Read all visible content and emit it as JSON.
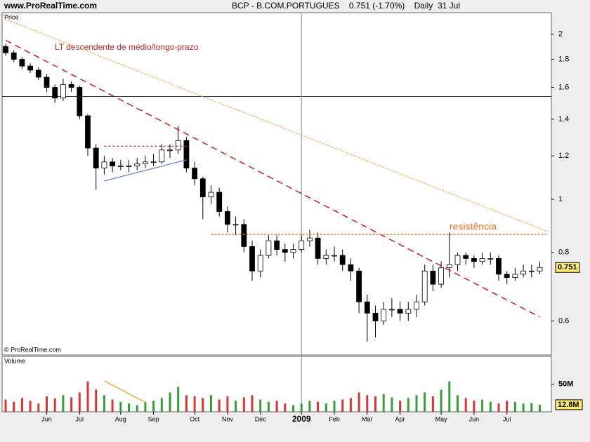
{
  "chart_data": {
    "type": "candlestick",
    "site": "www.ProRealTime.com",
    "title": "BCP - B.COM.PORTUGUES    0.751 (-1.70%)    Daily  31 Jul",
    "price_label": "Price",
    "copyright": "© ProRealTime.com",
    "log_scale": true,
    "categories": [
      null,
      null,
      null,
      null,
      null,
      "Jun",
      null,
      null,
      null,
      "Jul",
      null,
      null,
      null,
      null,
      "Aug",
      null,
      null,
      null,
      "Sep",
      null,
      null,
      null,
      null,
      "Oct",
      null,
      null,
      null,
      "Nov",
      null,
      null,
      null,
      "Dec",
      null,
      null,
      null,
      null,
      "2009",
      null,
      null,
      null,
      "Feb",
      null,
      null,
      null,
      "Mar",
      null,
      null,
      null,
      "Apr",
      null,
      null,
      null,
      null,
      "May",
      null,
      null,
      null,
      "Jun",
      null,
      null,
      null,
      "Jul",
      null,
      null,
      null,
      null
    ],
    "open": [
      1.9,
      1.85,
      1.8,
      1.75,
      1.72,
      1.67,
      1.6,
      1.53,
      1.62,
      1.6,
      1.42,
      1.24,
      1.14,
      1.17,
      1.15,
      1.15,
      1.15,
      1.16,
      1.17,
      1.17,
      1.23,
      1.23,
      1.28,
      1.14,
      1.09,
      1.01,
      1.03,
      0.95,
      0.9,
      0.9,
      0.82,
      0.74,
      0.79,
      0.84,
      0.81,
      0.8,
      0.81,
      0.84,
      0.85,
      0.78,
      0.79,
      0.79,
      0.76,
      0.74,
      0.65,
      0.62,
      0.6,
      0.63,
      0.63,
      0.62,
      0.63,
      0.65,
      0.74,
      0.7,
      0.75,
      0.76,
      0.79,
      0.78,
      0.77,
      0.78,
      0.78,
      0.73,
      0.72,
      0.73,
      0.74,
      0.74
    ],
    "high": [
      1.92,
      1.87,
      1.82,
      1.77,
      1.74,
      1.69,
      1.62,
      1.66,
      1.64,
      1.61,
      1.43,
      1.26,
      1.2,
      1.19,
      1.18,
      1.18,
      1.19,
      1.2,
      1.21,
      1.26,
      1.26,
      1.36,
      1.3,
      1.17,
      1.1,
      1.06,
      1.05,
      0.97,
      0.93,
      0.92,
      0.84,
      0.81,
      0.86,
      0.86,
      0.83,
      0.83,
      0.86,
      0.88,
      0.87,
      0.81,
      0.82,
      0.81,
      0.78,
      0.75,
      0.67,
      0.64,
      0.65,
      0.66,
      0.65,
      0.65,
      0.67,
      0.76,
      0.76,
      0.77,
      0.87,
      0.8,
      0.8,
      0.79,
      0.8,
      0.8,
      0.79,
      0.74,
      0.75,
      0.76,
      0.76,
      0.77
    ],
    "low": [
      1.83,
      1.78,
      1.73,
      1.7,
      1.65,
      1.57,
      1.5,
      1.51,
      1.57,
      1.4,
      1.2,
      1.04,
      1.11,
      1.12,
      1.13,
      1.12,
      1.13,
      1.14,
      1.15,
      1.16,
      1.19,
      1.21,
      1.12,
      1.06,
      0.92,
      0.98,
      0.93,
      0.87,
      0.86,
      0.8,
      0.71,
      0.72,
      0.78,
      0.79,
      0.77,
      0.78,
      0.8,
      0.82,
      0.76,
      0.76,
      0.77,
      0.74,
      0.71,
      0.62,
      0.55,
      0.56,
      0.59,
      0.61,
      0.6,
      0.6,
      0.61,
      0.64,
      0.68,
      0.69,
      0.72,
      0.74,
      0.76,
      0.75,
      0.76,
      0.76,
      0.71,
      0.7,
      0.71,
      0.72,
      0.72,
      0.73
    ],
    "close": [
      1.85,
      1.8,
      1.75,
      1.72,
      1.67,
      1.6,
      1.53,
      1.62,
      1.6,
      1.42,
      1.24,
      1.14,
      1.17,
      1.15,
      1.15,
      1.15,
      1.16,
      1.17,
      1.17,
      1.23,
      1.23,
      1.28,
      1.14,
      1.09,
      1.01,
      1.03,
      0.95,
      0.9,
      0.9,
      0.82,
      0.74,
      0.79,
      0.84,
      0.81,
      0.8,
      0.81,
      0.84,
      0.85,
      0.78,
      0.79,
      0.79,
      0.76,
      0.74,
      0.65,
      0.62,
      0.6,
      0.63,
      0.63,
      0.62,
      0.63,
      0.65,
      0.74,
      0.7,
      0.75,
      0.76,
      0.79,
      0.78,
      0.77,
      0.78,
      0.78,
      0.73,
      0.72,
      0.73,
      0.74,
      0.74,
      0.751
    ],
    "ylim": [
      0.52,
      2.19
    ],
    "yticks": [
      0.6,
      0.8,
      1,
      1.2,
      1.4,
      1.6,
      1.8,
      2
    ],
    "up_color": "#ffffff",
    "down_color": "#000000",
    "volume": {
      "label": "Volume",
      "values": [
        22,
        18,
        25,
        20,
        15,
        28,
        24,
        30,
        26,
        35,
        55,
        40,
        30,
        22,
        18,
        15,
        12,
        18,
        20,
        25,
        35,
        45,
        30,
        28,
        25,
        30,
        22,
        28,
        20,
        26,
        30,
        22,
        18,
        20,
        15,
        12,
        15,
        20,
        18,
        15,
        20,
        22,
        25,
        35,
        30,
        28,
        32,
        26,
        20,
        25,
        30,
        35,
        28,
        40,
        55,
        30,
        25,
        20,
        22,
        18,
        15,
        20,
        18,
        15,
        16,
        12.8
      ],
      "last_label": "12.8M",
      "ylim": [
        0,
        100
      ],
      "yticks": [
        {
          "value": 50,
          "label": "50M"
        }
      ],
      "up_color": "#33a033",
      "down_color": "#dd3333"
    },
    "annotations": {
      "trend_label": "LT descendente de médio/longo-prazo",
      "resistance_label": "resistência",
      "lines": [
        {
          "color": "#cc0000",
          "dash": "9,6",
          "from": [
            0,
            1.95
          ],
          "to": [
            65,
            0.61
          ]
        },
        {
          "color": "#f0a030",
          "dash": "2,2",
          "from": [
            0,
            2.13
          ],
          "to": [
            66,
            0.873
          ]
        },
        {
          "color": "#f07020",
          "dash": "3,2",
          "from": [
            25,
            0.863
          ],
          "to": [
            66,
            0.863
          ]
        },
        {
          "color": "#dd2222",
          "dash": "3,3",
          "from": [
            12,
            1.25
          ],
          "to": [
            22,
            1.25
          ]
        },
        {
          "color": "#6688dd",
          "dash": "none",
          "from": [
            12,
            1.08
          ],
          "to": [
            22,
            1.18
          ]
        }
      ],
      "volume_line": {
        "color": "#f0a030",
        "from": [
          12,
          56
        ],
        "to": [
          17,
          17
        ]
      },
      "crosshair": {
        "price": 1.54,
        "index": 36
      }
    }
  }
}
